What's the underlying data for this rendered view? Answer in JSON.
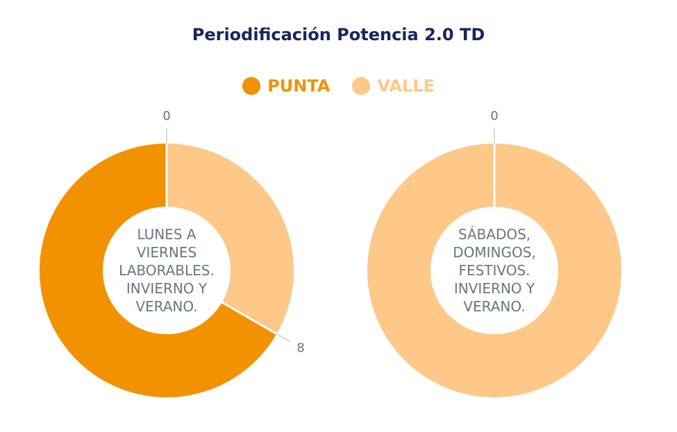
{
  "chart_data": [
    {
      "type": "pie",
      "title": "Periodificación Potencia 2.0 TD",
      "center_label": [
        "LUNES A",
        "VIERNES",
        "LABORABLES.",
        "INVIERNO Y",
        "VERANO."
      ],
      "series": [
        {
          "name": "PUNTA",
          "start_hour": 8,
          "end_hour": 24,
          "color": "#f29200"
        },
        {
          "name": "VALLE",
          "start_hour": 0,
          "end_hour": 8,
          "color": "#fdc888"
        }
      ],
      "tick_labels": [
        "0",
        "8"
      ],
      "total_hours": 24
    },
    {
      "type": "pie",
      "title": "Periodificación Potencia 2.0 TD",
      "center_label": [
        "SÁBADOS,",
        "DOMINGOS,",
        "FESTIVOS.",
        "INVIERNO Y",
        "VERANO."
      ],
      "series": [
        {
          "name": "VALLE",
          "start_hour": 0,
          "end_hour": 24,
          "color": "#fdc888"
        }
      ],
      "tick_labels": [
        "0"
      ],
      "total_hours": 24
    }
  ],
  "header": {
    "title": "Periodificación Potencia 2.0 TD"
  },
  "legend": {
    "items": [
      {
        "label": "PUNTA",
        "color": "#f29200"
      },
      {
        "label": "VALLE",
        "color": "#fdc888"
      }
    ]
  }
}
